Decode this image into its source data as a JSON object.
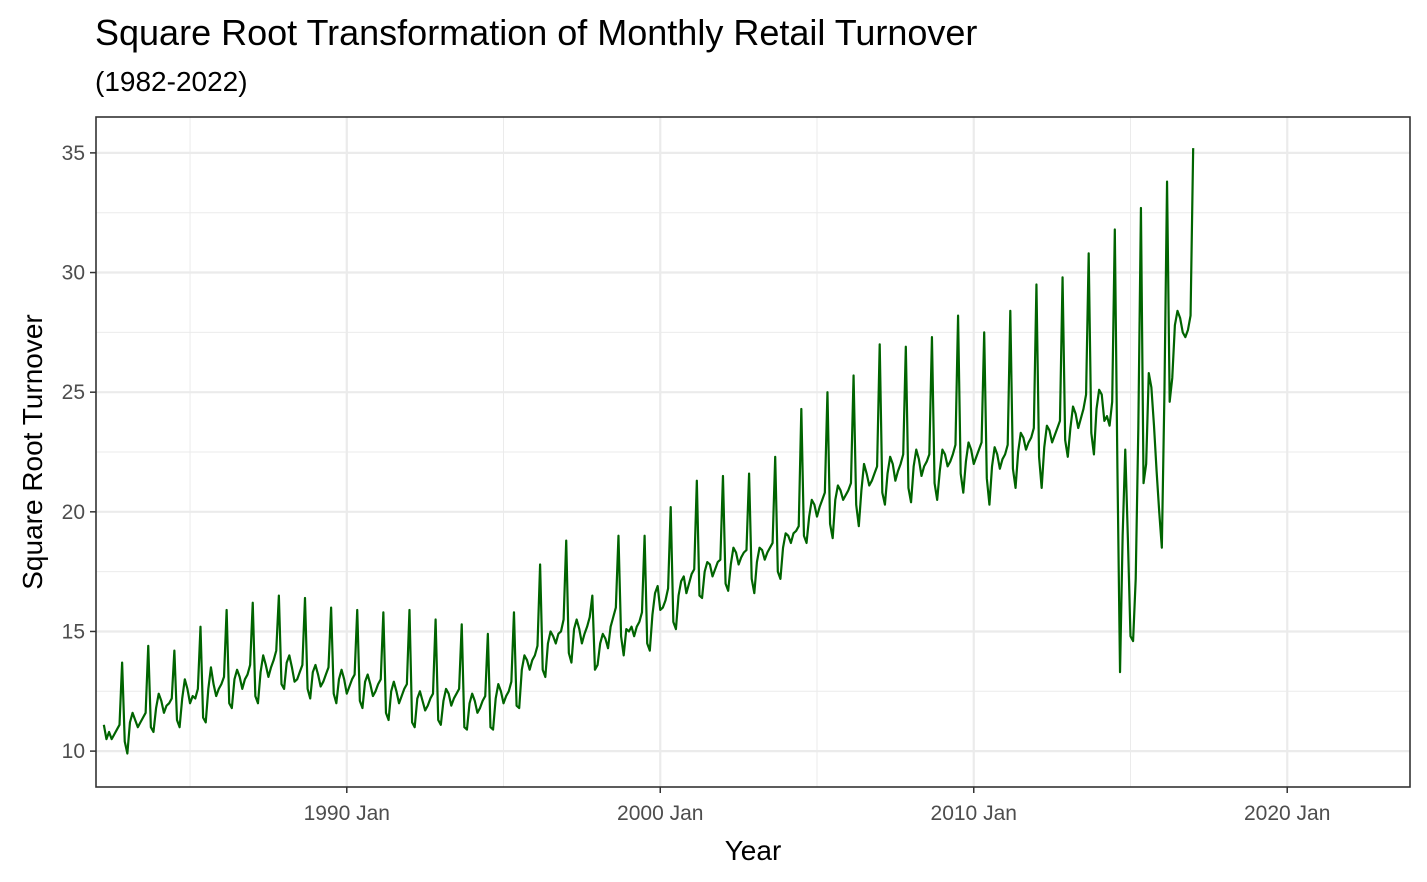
{
  "chart_data": {
    "type": "line",
    "title": "Square Root Transformation of Monthly Retail Turnover",
    "subtitle": "(1982-2022)",
    "xlabel": "Year",
    "ylabel": "Square Root Turnover",
    "xlim": [
      "1982-01",
      "2023-12"
    ],
    "ylim": [
      8.5,
      36.5
    ],
    "x_ticks": [
      {
        "date": "1990-01",
        "label": "1990 Jan"
      },
      {
        "date": "2000-01",
        "label": "2000 Jan"
      },
      {
        "date": "2010-01",
        "label": "2010 Jan"
      },
      {
        "date": "2020-01",
        "label": "2020 Jan"
      }
    ],
    "y_ticks": [
      10,
      15,
      20,
      25,
      30,
      35
    ],
    "grid": true,
    "legend": "none",
    "line_color": "#006400",
    "series": [
      {
        "start": "1982-04",
        "frequency": "monthly",
        "values": [
          11.1,
          10.5,
          10.8,
          10.5,
          10.7,
          10.9,
          11.1,
          13.7,
          10.4,
          9.9,
          11.2,
          11.6,
          11.3,
          11.0,
          11.2,
          11.4,
          11.6,
          14.4,
          11.0,
          10.8,
          11.8,
          12.4,
          12.1,
          11.6,
          11.9,
          12.0,
          12.2,
          14.2,
          11.3,
          11.0,
          12.2,
          13.0,
          12.6,
          12.0,
          12.3,
          12.2,
          12.6,
          15.2,
          11.4,
          11.2,
          12.6,
          13.5,
          12.8,
          12.3,
          12.6,
          12.8,
          13.1,
          15.9,
          12.0,
          11.8,
          13.0,
          13.4,
          13.1,
          12.6,
          13.0,
          13.2,
          13.6,
          16.2,
          12.3,
          12.0,
          13.3,
          14.0,
          13.6,
          13.1,
          13.5,
          13.8,
          14.2,
          16.5,
          12.8,
          12.6,
          13.7,
          14.0,
          13.5,
          12.9,
          13.0,
          13.3,
          13.6,
          16.4,
          12.6,
          12.2,
          13.3,
          13.6,
          13.2,
          12.7,
          12.9,
          13.2,
          13.5,
          16.0,
          12.4,
          12.0,
          13.0,
          13.4,
          13.0,
          12.4,
          12.7,
          13.0,
          13.2,
          15.9,
          12.1,
          11.8,
          12.9,
          13.2,
          12.8,
          12.3,
          12.5,
          12.8,
          13.0,
          15.8,
          11.6,
          11.3,
          12.5,
          12.9,
          12.5,
          12.0,
          12.3,
          12.6,
          12.8,
          15.9,
          11.2,
          11.0,
          12.2,
          12.5,
          12.1,
          11.7,
          11.9,
          12.2,
          12.4,
          15.5,
          11.3,
          11.1,
          12.1,
          12.6,
          12.4,
          11.9,
          12.2,
          12.4,
          12.6,
          15.3,
          11.0,
          10.9,
          12.0,
          12.4,
          12.1,
          11.6,
          11.8,
          12.1,
          12.3,
          14.9,
          11.0,
          10.9,
          12.2,
          12.8,
          12.5,
          12.0,
          12.3,
          12.5,
          12.9,
          15.8,
          11.9,
          11.8,
          13.4,
          14.0,
          13.8,
          13.4,
          13.8,
          14.0,
          14.4,
          17.8,
          13.4,
          13.1,
          14.5,
          15.0,
          14.8,
          14.5,
          14.9,
          15.0,
          15.5,
          18.8,
          14.1,
          13.7,
          15.1,
          15.5,
          15.1,
          14.5,
          14.9,
          15.2,
          15.6,
          16.5,
          13.4,
          13.6,
          14.5,
          14.9,
          14.7,
          14.3,
          15.2,
          15.6,
          16.0,
          19.0,
          14.8,
          14.0,
          15.1,
          15.0,
          15.2,
          14.8,
          15.2,
          15.4,
          15.8,
          19.0,
          14.5,
          14.2,
          15.7,
          16.6,
          16.9,
          15.9,
          16.0,
          16.3,
          16.8,
          20.2,
          15.4,
          15.1,
          16.5,
          17.1,
          17.3,
          16.6,
          17.0,
          17.4,
          17.6,
          21.3,
          16.5,
          16.4,
          17.5,
          17.9,
          17.8,
          17.3,
          17.6,
          17.9,
          18.0,
          21.5,
          17.0,
          16.7,
          17.8,
          18.5,
          18.3,
          17.8,
          18.1,
          18.3,
          18.4,
          21.6,
          17.2,
          16.6,
          17.9,
          18.5,
          18.4,
          18.0,
          18.3,
          18.5,
          18.7,
          22.3,
          17.5,
          17.2,
          18.5,
          19.1,
          19.0,
          18.7,
          19.1,
          19.2,
          19.4,
          24.3,
          19.0,
          18.7,
          19.8,
          20.5,
          20.3,
          19.8,
          20.2,
          20.5,
          20.8,
          25.0,
          19.5,
          18.9,
          20.5,
          21.1,
          20.9,
          20.5,
          20.7,
          20.9,
          21.2,
          25.7,
          20.3,
          19.4,
          20.9,
          22.0,
          21.6,
          21.1,
          21.3,
          21.6,
          21.9,
          27.0,
          20.8,
          20.3,
          21.6,
          22.3,
          22.0,
          21.3,
          21.7,
          22.0,
          22.4,
          26.9,
          21.0,
          20.4,
          21.9,
          22.6,
          22.2,
          21.5,
          21.9,
          22.1,
          22.4,
          27.3,
          21.2,
          20.5,
          21.7,
          22.6,
          22.4,
          21.9,
          22.1,
          22.4,
          22.8,
          28.2,
          21.6,
          20.8,
          22.1,
          22.9,
          22.6,
          22.0,
          22.3,
          22.6,
          22.9,
          27.5,
          21.4,
          20.3,
          21.9,
          22.7,
          22.4,
          21.8,
          22.2,
          22.4,
          22.8,
          28.4,
          21.8,
          21.0,
          22.5,
          23.3,
          23.1,
          22.6,
          22.9,
          23.1,
          23.5,
          29.5,
          22.3,
          21.0,
          22.7,
          23.6,
          23.4,
          22.9,
          23.2,
          23.5,
          23.8,
          29.8,
          23.0,
          22.3,
          23.5,
          24.4,
          24.1,
          23.5,
          23.9,
          24.3,
          24.9,
          30.8,
          23.3,
          22.4,
          24.3,
          25.1,
          24.9,
          23.8,
          24.0,
          23.6,
          24.6,
          31.8,
          21.8,
          13.3,
          19.0,
          22.6,
          18.9,
          14.8,
          14.6,
          17.2,
          23.5,
          32.7,
          21.2,
          22.0,
          25.8,
          25.2,
          23.6,
          21.7,
          20.0,
          18.5,
          25.0,
          33.8,
          24.6,
          25.6,
          27.8,
          28.4,
          28.1,
          27.5,
          27.3,
          27.6,
          28.2,
          35.2
        ]
      }
    ]
  }
}
